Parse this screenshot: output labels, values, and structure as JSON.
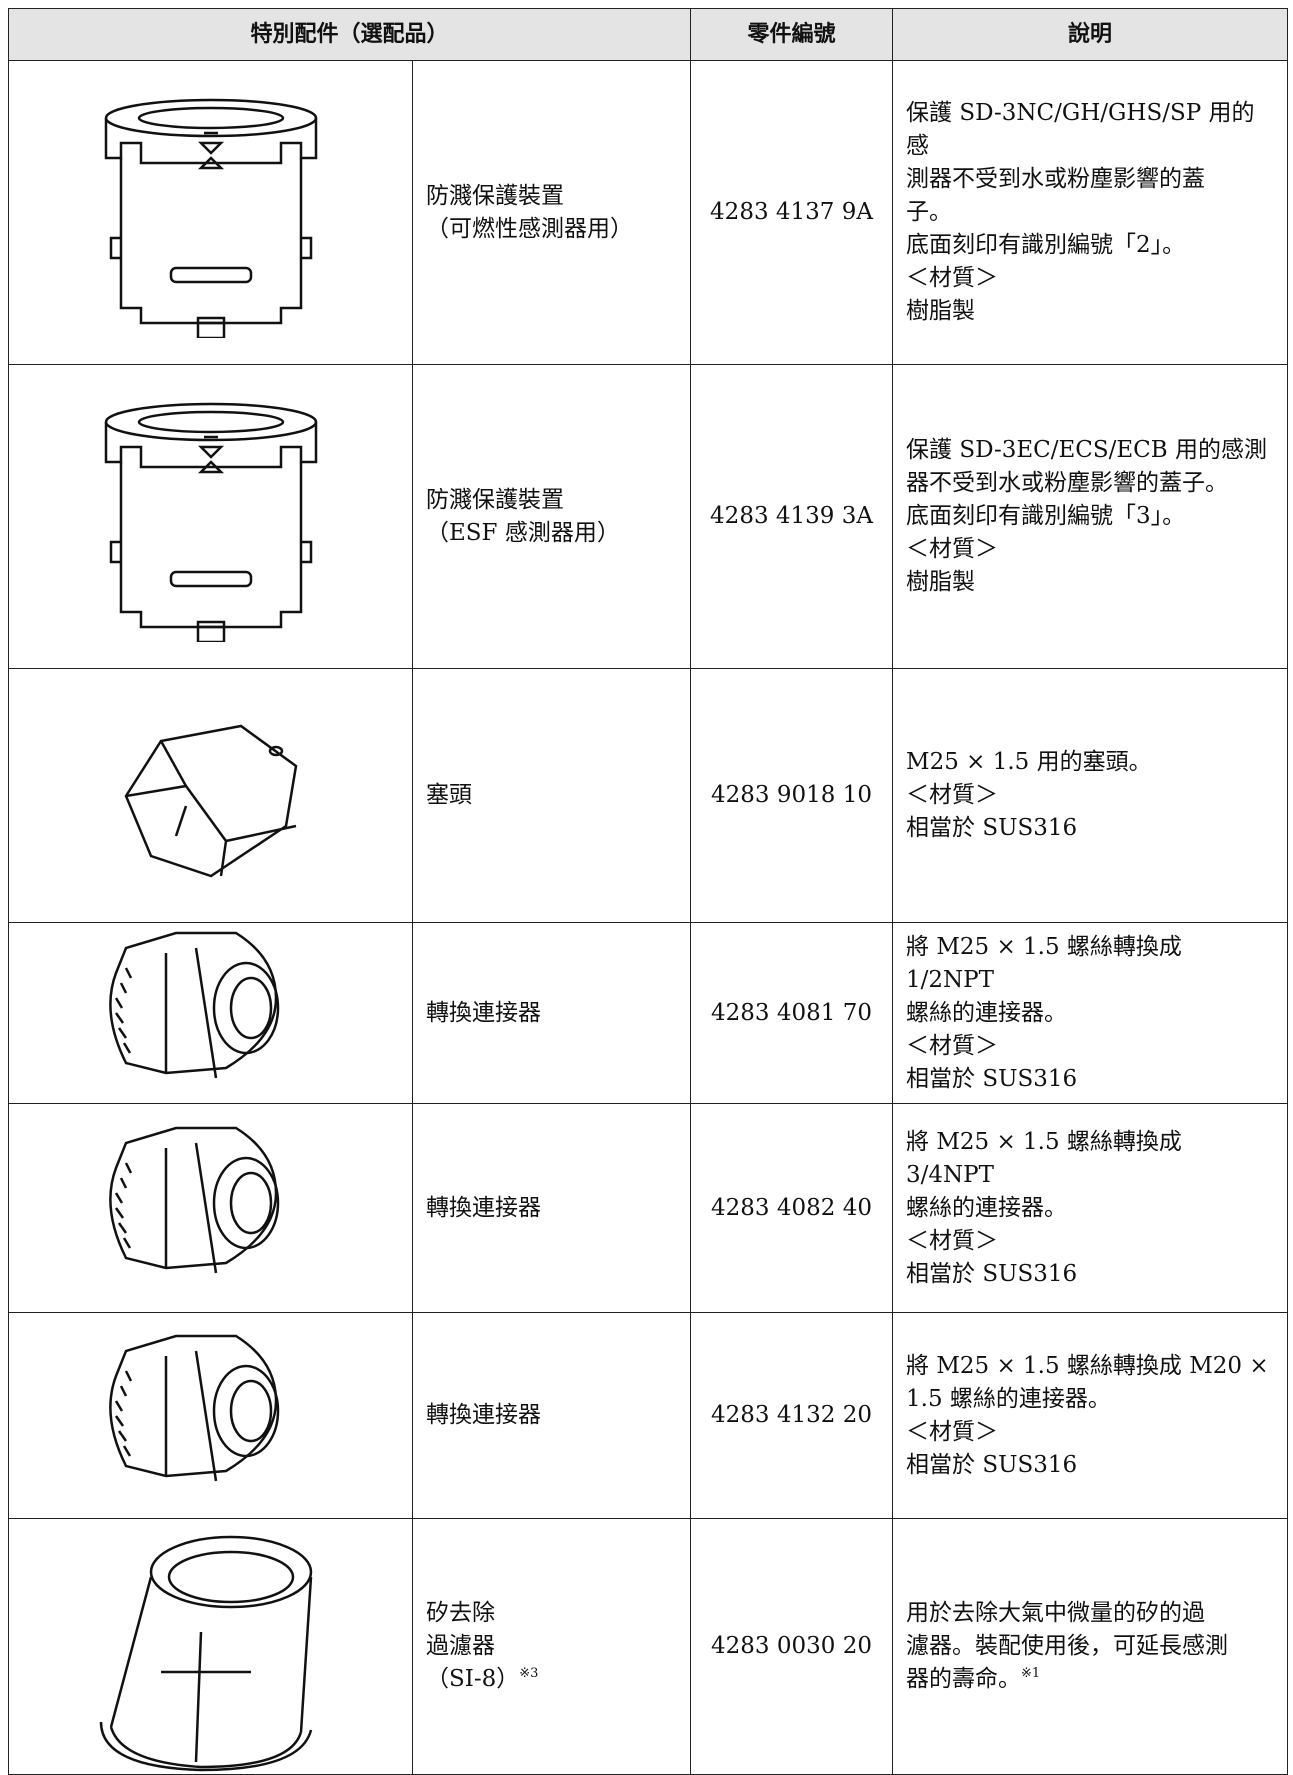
{
  "table": {
    "headers": [
      "特別配件（選配品）",
      "零件編號",
      "說明"
    ],
    "rows": [
      {
        "name": [
          "防濺保護裝置",
          "（可燃性感測器用）"
        ],
        "part_no": "4283 4137 9A",
        "description": [
          "保護 SD-3NC/GH/GHS/SP 用的感",
          "測器不受到水或粉塵影響的蓋",
          "子。",
          "底面刻印有識別編號「2」。",
          "＜材質＞",
          "樹脂製"
        ]
      },
      {
        "name": [
          "防濺保護裝置",
          "（ESF 感測器用）"
        ],
        "part_no": "4283 4139 3A",
        "description": [
          "保護 SD-3EC/ECS/ECB 用的感測",
          "器不受到水或粉塵影響的蓋子。",
          "底面刻印有識別編號「3」。",
          "＜材質＞",
          "樹脂製"
        ]
      },
      {
        "name": [
          "塞頭"
        ],
        "part_no": "4283 9018 10",
        "description": [
          "M25 × 1.5 用的塞頭。",
          "＜材質＞",
          "相當於 SUS316"
        ]
      },
      {
        "name": [
          "轉換連接器"
        ],
        "part_no": "4283 4081 70",
        "description": [
          "將 M25 × 1.5 螺絲轉換成 1/2NPT",
          "螺絲的連接器。",
          "＜材質＞",
          "相當於 SUS316"
        ]
      },
      {
        "name": [
          "轉換連接器"
        ],
        "part_no": "4283 4082 40",
        "description": [
          "將 M25 × 1.5 螺絲轉換成 3/4NPT",
          "螺絲的連接器。",
          "＜材質＞",
          "相當於 SUS316"
        ]
      },
      {
        "name": [
          "轉換連接器"
        ],
        "part_no": "4283 4132 20",
        "description": [
          "將 M25 × 1.5 螺絲轉換成 M20 ×",
          "1.5 螺絲的連接器。",
          "＜材質＞",
          "相當於 SUS316"
        ]
      },
      {
        "name": [
          "矽去除",
          "過濾器",
          "（SI-8）"
        ],
        "name_note": "※3",
        "part_no": "4283 0030 20",
        "description": [
          "用於去除大氣中微量的矽的過",
          "濾器。裝配使用後，可延長感測",
          "器的壽命。"
        ],
        "description_note": "※1"
      }
    ]
  }
}
